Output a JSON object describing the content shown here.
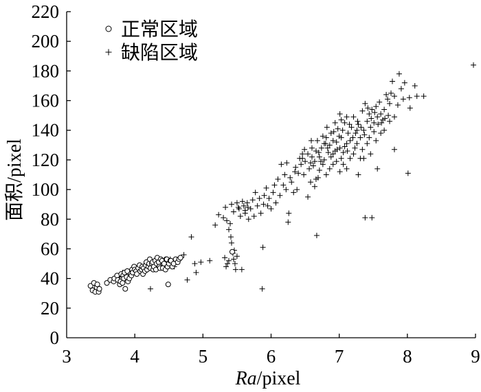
{
  "chart_data": {
    "type": "scatter",
    "xlabel": [
      "Ra",
      "/pixel"
    ],
    "ylabel": "面积/pixel",
    "xlim": [
      3,
      9
    ],
    "ylim": [
      0,
      220
    ],
    "xticks": [
      3,
      4,
      5,
      6,
      7,
      8,
      9
    ],
    "yticks": [
      0,
      20,
      40,
      60,
      80,
      100,
      120,
      140,
      160,
      180,
      200,
      220
    ],
    "grid": false,
    "legend": "top-left",
    "marker_color": "#000000",
    "series": [
      {
        "name": "正常区域",
        "marker": "circle",
        "points": [
          [
            3.35,
            35
          ],
          [
            3.38,
            32
          ],
          [
            3.4,
            37
          ],
          [
            3.42,
            31
          ],
          [
            3.44,
            34
          ],
          [
            3.45,
            36
          ],
          [
            3.47,
            31
          ],
          [
            3.48,
            33
          ],
          [
            3.59,
            37
          ],
          [
            3.64,
            39
          ],
          [
            3.69,
            38
          ],
          [
            3.7,
            40
          ],
          [
            3.74,
            42
          ],
          [
            3.75,
            39
          ],
          [
            3.78,
            36
          ],
          [
            3.79,
            38
          ],
          [
            3.8,
            43
          ],
          [
            3.82,
            37
          ],
          [
            3.83,
            42
          ],
          [
            3.84,
            40
          ],
          [
            3.85,
            44
          ],
          [
            3.86,
            33
          ],
          [
            3.88,
            41
          ],
          [
            3.89,
            45
          ],
          [
            3.9,
            38
          ],
          [
            3.92,
            40
          ],
          [
            3.94,
            43
          ],
          [
            3.95,
            42
          ],
          [
            3.96,
            46
          ],
          [
            3.97,
            44
          ],
          [
            3.99,
            48
          ],
          [
            4.0,
            46
          ],
          [
            4.02,
            45
          ],
          [
            4.03,
            43
          ],
          [
            4.05,
            47
          ],
          [
            4.07,
            49
          ],
          [
            4.08,
            45
          ],
          [
            4.1,
            46
          ],
          [
            4.11,
            48
          ],
          [
            4.12,
            43
          ],
          [
            4.13,
            47
          ],
          [
            4.15,
            45
          ],
          [
            4.16,
            49
          ],
          [
            4.17,
            51
          ],
          [
            4.18,
            46
          ],
          [
            4.2,
            48
          ],
          [
            4.21,
            50
          ],
          [
            4.22,
            53
          ],
          [
            4.23,
            47
          ],
          [
            4.25,
            50
          ],
          [
            4.26,
            51
          ],
          [
            4.27,
            46
          ],
          [
            4.28,
            48
          ],
          [
            4.3,
            52
          ],
          [
            4.31,
            46
          ],
          [
            4.32,
            50
          ],
          [
            4.33,
            54
          ],
          [
            4.35,
            51
          ],
          [
            4.36,
            48
          ],
          [
            4.37,
            47
          ],
          [
            4.38,
            53
          ],
          [
            4.4,
            52
          ],
          [
            4.41,
            47
          ],
          [
            4.43,
            50
          ],
          [
            4.45,
            46
          ],
          [
            4.46,
            53
          ],
          [
            4.47,
            53
          ],
          [
            4.48,
            48
          ],
          [
            4.49,
            36
          ],
          [
            4.5,
            50
          ],
          [
            4.52,
            52
          ],
          [
            4.53,
            52
          ],
          [
            4.55,
            48
          ],
          [
            4.57,
            50
          ],
          [
            4.6,
            53
          ],
          [
            4.63,
            51
          ],
          [
            4.65,
            53
          ],
          [
            4.67,
            54
          ],
          [
            5.43,
            58
          ]
        ]
      },
      {
        "name": "缺陷区域",
        "marker": "plus",
        "points": [
          [
            3.78,
            41
          ],
          [
            3.82,
            44
          ],
          [
            3.88,
            42
          ],
          [
            3.93,
            45
          ],
          [
            3.98,
            47
          ],
          [
            4.03,
            44
          ],
          [
            4.08,
            48
          ],
          [
            4.13,
            46
          ],
          [
            4.18,
            49
          ],
          [
            4.23,
            33
          ],
          [
            4.27,
            51
          ],
          [
            4.32,
            49
          ],
          [
            4.37,
            52
          ],
          [
            4.42,
            50
          ],
          [
            4.47,
            47
          ],
          [
            4.52,
            53
          ],
          [
            4.58,
            48
          ],
          [
            4.62,
            51
          ],
          [
            4.68,
            54
          ],
          [
            4.72,
            56
          ],
          [
            4.77,
            39
          ],
          [
            4.83,
            68
          ],
          [
            4.88,
            50
          ],
          [
            4.9,
            44
          ],
          [
            4.97,
            51
          ],
          [
            5.1,
            52
          ],
          [
            5.18,
            76
          ],
          [
            5.23,
            83
          ],
          [
            5.3,
            81
          ],
          [
            5.32,
            54
          ],
          [
            5.33,
            88
          ],
          [
            5.34,
            48
          ],
          [
            5.35,
            79
          ],
          [
            5.36,
            50
          ],
          [
            5.38,
            73
          ],
          [
            5.38,
            52
          ],
          [
            5.4,
            77
          ],
          [
            5.41,
            68
          ],
          [
            5.42,
            64
          ],
          [
            5.42,
            90
          ],
          [
            5.44,
            57
          ],
          [
            5.45,
            53
          ],
          [
            5.45,
            85
          ],
          [
            5.46,
            59
          ],
          [
            5.47,
            50
          ],
          [
            5.48,
            46
          ],
          [
            5.5,
            91
          ],
          [
            5.5,
            55
          ],
          [
            5.52,
            88
          ],
          [
            5.53,
            87
          ],
          [
            5.55,
            82
          ],
          [
            5.57,
            46
          ],
          [
            5.58,
            92
          ],
          [
            5.6,
            89
          ],
          [
            5.62,
            84
          ],
          [
            5.62,
            86
          ],
          [
            5.65,
            91
          ],
          [
            5.66,
            88
          ],
          [
            5.67,
            80
          ],
          [
            5.7,
            87
          ],
          [
            5.73,
            93
          ],
          [
            5.75,
            82
          ],
          [
            5.77,
            98
          ],
          [
            5.8,
            89
          ],
          [
            5.83,
            94
          ],
          [
            5.85,
            84
          ],
          [
            5.87,
            33
          ],
          [
            5.88,
            61
          ],
          [
            5.89,
            90
          ],
          [
            5.9,
            96
          ],
          [
            5.93,
            101
          ],
          [
            5.95,
            89
          ],
          [
            5.97,
            94
          ],
          [
            6.0,
            87
          ],
          [
            6.03,
            98
          ],
          [
            6.05,
            103
          ],
          [
            6.07,
            91
          ],
          [
            6.1,
            107
          ],
          [
            6.13,
            96
          ],
          [
            6.15,
            117
          ],
          [
            6.18,
            103
          ],
          [
            6.2,
            110
          ],
          [
            6.22,
            100
          ],
          [
            6.23,
            118
          ],
          [
            6.25,
            78
          ],
          [
            6.26,
            84
          ],
          [
            6.28,
            108
          ],
          [
            6.3,
            105
          ],
          [
            6.33,
            98
          ],
          [
            6.35,
            112
          ],
          [
            6.36,
            115
          ],
          [
            6.38,
            100
          ],
          [
            6.4,
            111
          ],
          [
            6.42,
            121
          ],
          [
            6.44,
            117
          ],
          [
            6.46,
            121
          ],
          [
            6.46,
            124
          ],
          [
            6.48,
            110
          ],
          [
            6.49,
            127
          ],
          [
            6.5,
            119
          ],
          [
            6.54,
            124
          ],
          [
            6.54,
            95
          ],
          [
            6.56,
            114
          ],
          [
            6.58,
            118
          ],
          [
            6.58,
            105
          ],
          [
            6.59,
            133
          ],
          [
            6.6,
            128
          ],
          [
            6.6,
            122
          ],
          [
            6.62,
            116
          ],
          [
            6.64,
            119
          ],
          [
            6.64,
            102
          ],
          [
            6.66,
            126
          ],
          [
            6.66,
            107
          ],
          [
            6.67,
            69
          ],
          [
            6.68,
            133
          ],
          [
            6.69,
            108
          ],
          [
            6.7,
            125
          ],
          [
            6.71,
            122
          ],
          [
            6.71,
            113
          ],
          [
            6.73,
            119
          ],
          [
            6.74,
            128
          ],
          [
            6.76,
            136
          ],
          [
            6.76,
            117
          ],
          [
            6.78,
            120
          ],
          [
            6.78,
            131
          ],
          [
            6.8,
            131
          ],
          [
            6.81,
            135
          ],
          [
            6.81,
            110
          ],
          [
            6.82,
            142
          ],
          [
            6.83,
            128
          ],
          [
            6.84,
            125
          ],
          [
            6.86,
            130
          ],
          [
            6.86,
            114
          ],
          [
            6.88,
            138
          ],
          [
            6.88,
            122
          ],
          [
            6.91,
            133
          ],
          [
            6.91,
            117
          ],
          [
            6.91,
            124
          ],
          [
            6.92,
            139
          ],
          [
            6.94,
            126
          ],
          [
            6.94,
            145
          ],
          [
            6.96,
            132
          ],
          [
            6.96,
            119
          ],
          [
            6.97,
            127
          ],
          [
            6.98,
            141
          ],
          [
            7.0,
            136
          ],
          [
            7.01,
            128
          ],
          [
            7.01,
            151
          ],
          [
            7.01,
            112
          ],
          [
            7.03,
            135
          ],
          [
            7.03,
            121
          ],
          [
            7.03,
            147
          ],
          [
            7.05,
            140
          ],
          [
            7.06,
            125
          ],
          [
            7.06,
            117
          ],
          [
            7.08,
            145
          ],
          [
            7.08,
            129
          ],
          [
            7.11,
            131
          ],
          [
            7.11,
            149
          ],
          [
            7.11,
            114
          ],
          [
            7.12,
            126
          ],
          [
            7.13,
            138
          ],
          [
            7.15,
            144
          ],
          [
            7.16,
            133
          ],
          [
            7.16,
            121
          ],
          [
            7.18,
            142
          ],
          [
            7.2,
            135
          ],
          [
            7.21,
            124
          ],
          [
            7.21,
            149
          ],
          [
            7.23,
            128
          ],
          [
            7.24,
            138
          ],
          [
            7.26,
            131
          ],
          [
            7.26,
            140
          ],
          [
            7.27,
            146
          ],
          [
            7.28,
            144
          ],
          [
            7.28,
            110
          ],
          [
            7.31,
            135
          ],
          [
            7.31,
            121
          ],
          [
            7.32,
            142
          ],
          [
            7.34,
            153
          ],
          [
            7.34,
            127
          ],
          [
            7.36,
            140
          ],
          [
            7.36,
            121
          ],
          [
            7.37,
            137
          ],
          [
            7.38,
            158
          ],
          [
            7.38,
            81
          ],
          [
            7.41,
            146
          ],
          [
            7.41,
            131
          ],
          [
            7.42,
            155
          ],
          [
            7.44,
            151
          ],
          [
            7.44,
            135
          ],
          [
            7.46,
            142
          ],
          [
            7.46,
            124
          ],
          [
            7.47,
            148
          ],
          [
            7.48,
            154
          ],
          [
            7.48,
            81
          ],
          [
            7.51,
            145
          ],
          [
            7.51,
            139
          ],
          [
            7.52,
            152
          ],
          [
            7.54,
            156
          ],
          [
            7.54,
            133
          ],
          [
            7.56,
            149
          ],
          [
            7.56,
            114
          ],
          [
            7.57,
            144
          ],
          [
            7.59,
            159
          ],
          [
            7.61,
            151
          ],
          [
            7.61,
            138
          ],
          [
            7.62,
            145
          ],
          [
            7.64,
            147
          ],
          [
            7.66,
            154
          ],
          [
            7.66,
            140
          ],
          [
            7.67,
            148
          ],
          [
            7.69,
            164
          ],
          [
            7.71,
            161
          ],
          [
            7.72,
            150
          ],
          [
            7.74,
            146
          ],
          [
            7.74,
            158
          ],
          [
            7.76,
            165
          ],
          [
            7.78,
            173
          ],
          [
            7.81,
            149
          ],
          [
            7.81,
            127
          ],
          [
            7.81,
            163
          ],
          [
            7.86,
            157
          ],
          [
            7.88,
            178
          ],
          [
            7.91,
            168
          ],
          [
            7.94,
            161
          ],
          [
            7.96,
            172
          ],
          [
            8.01,
            111
          ],
          [
            8.03,
            162
          ],
          [
            8.04,
            155
          ],
          [
            8.11,
            170
          ],
          [
            8.14,
            163
          ],
          [
            8.24,
            163
          ],
          [
            8.97,
            184
          ]
        ]
      }
    ]
  }
}
